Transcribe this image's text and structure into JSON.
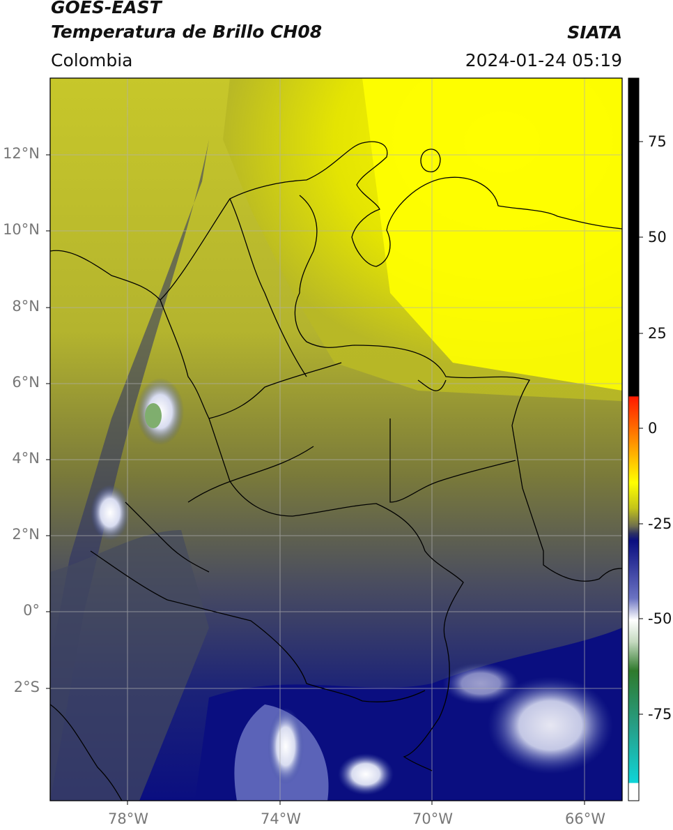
{
  "header": {
    "satellite": "GOES-EAST",
    "product": "Temperatura de Brillo CH08",
    "brand": "SIATA",
    "region": "Colombia",
    "timestamp": "2024-01-24 05:19"
  },
  "map": {
    "latitude_labels": [
      "12°N",
      "10°N",
      "8°N",
      "6°N",
      "4°N",
      "2°N",
      "0°",
      "2°S"
    ],
    "longitude_labels": [
      "78°W",
      "74°W",
      "70°W",
      "66°W"
    ]
  },
  "colorbar": {
    "tick_labels": [
      "75",
      "50",
      "25",
      "0",
      "-25",
      "-50",
      "-75"
    ],
    "colors": {
      "black": "#000000",
      "red": "#ff1a00",
      "orange": "#ff9a00",
      "yellow": "#ffff00",
      "olive": "#8a8a30",
      "slate": "#3a3f6a",
      "navy": "#0a0e80",
      "white": "#ffffff",
      "green": "#2f7a2c",
      "teal": "#18c7c4"
    }
  }
}
